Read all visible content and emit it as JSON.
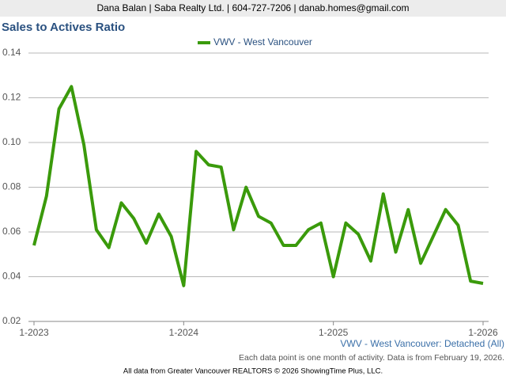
{
  "header": "Dana Balan | Saba Realty Ltd. | 604-727-7206 | danab.homes@gmail.com",
  "chart_data": {
    "type": "line",
    "title": "Sales to Actives Ratio",
    "subtitle": "VWV - West Vancouver: Detached (All)",
    "note": "Each data point is one month of activity. Data is from February 19, 2026.",
    "categories": [
      "1-2023",
      null,
      null,
      null,
      null,
      null,
      null,
      null,
      null,
      null,
      null,
      null,
      "1-2024",
      null,
      null,
      null,
      null,
      null,
      null,
      null,
      null,
      null,
      null,
      null,
      "1-2025",
      null,
      null,
      null,
      null,
      null,
      null,
      null,
      null,
      null,
      null,
      null,
      "1-2026"
    ],
    "series": [
      {
        "name": "VWV - West Vancouver",
        "color": "#3a9a0b",
        "values": [
          0.054,
          0.076,
          0.115,
          0.125,
          0.099,
          0.061,
          0.053,
          0.073,
          0.066,
          0.055,
          0.068,
          0.058,
          0.036,
          0.096,
          0.09,
          0.089,
          0.061,
          0.08,
          0.067,
          0.064,
          0.054,
          0.054,
          0.061,
          0.064,
          0.04,
          0.064,
          0.059,
          0.047,
          0.077,
          0.051,
          0.07,
          0.046,
          0.058,
          0.07,
          0.063,
          0.038,
          0.037
        ]
      }
    ],
    "ylim": [
      0.02,
      0.14
    ],
    "yticks": [
      0.02,
      0.04,
      0.06,
      0.08,
      {
        "value": 0.1,
        "label": "0.10"
      },
      0.12,
      0.14
    ],
    "grid": true,
    "legend": "top"
  },
  "footer": "All data from Greater Vancouver REALTORS © 2026 ShowingTime Plus, LLC."
}
